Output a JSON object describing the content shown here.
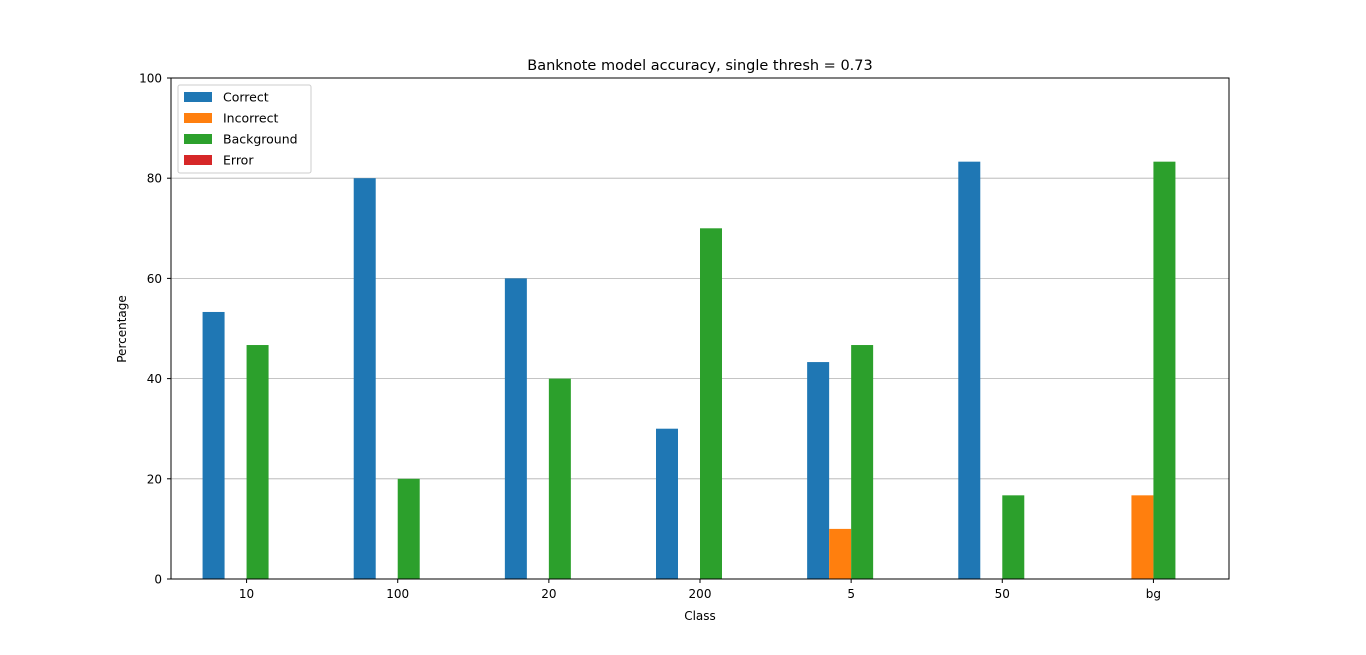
{
  "chart_data": {
    "type": "bar",
    "title": "Banknote model accuracy, single thresh = 0.73",
    "xlabel": "Class",
    "ylabel": "Percentage",
    "ylim": [
      0,
      100
    ],
    "yticks": [
      0,
      20,
      40,
      60,
      80,
      100
    ],
    "grid": "y",
    "legend_position": "top-left",
    "categories": [
      "10",
      "100",
      "20",
      "200",
      "5",
      "50",
      "bg"
    ],
    "series": [
      {
        "name": "Correct",
        "color": "#1f77b4",
        "values": [
          53.3,
          80.0,
          60.0,
          30.0,
          43.3,
          83.3,
          0
        ]
      },
      {
        "name": "Incorrect",
        "color": "#ff7f0e",
        "values": [
          0,
          0,
          0,
          0,
          10.0,
          0,
          16.7
        ]
      },
      {
        "name": "Background",
        "color": "#2ca02c",
        "values": [
          46.7,
          20.0,
          40.0,
          70.0,
          46.7,
          16.7,
          83.3
        ]
      },
      {
        "name": "Error",
        "color": "#d62728",
        "values": [
          0,
          0,
          0,
          0,
          0,
          0,
          0
        ]
      }
    ]
  }
}
